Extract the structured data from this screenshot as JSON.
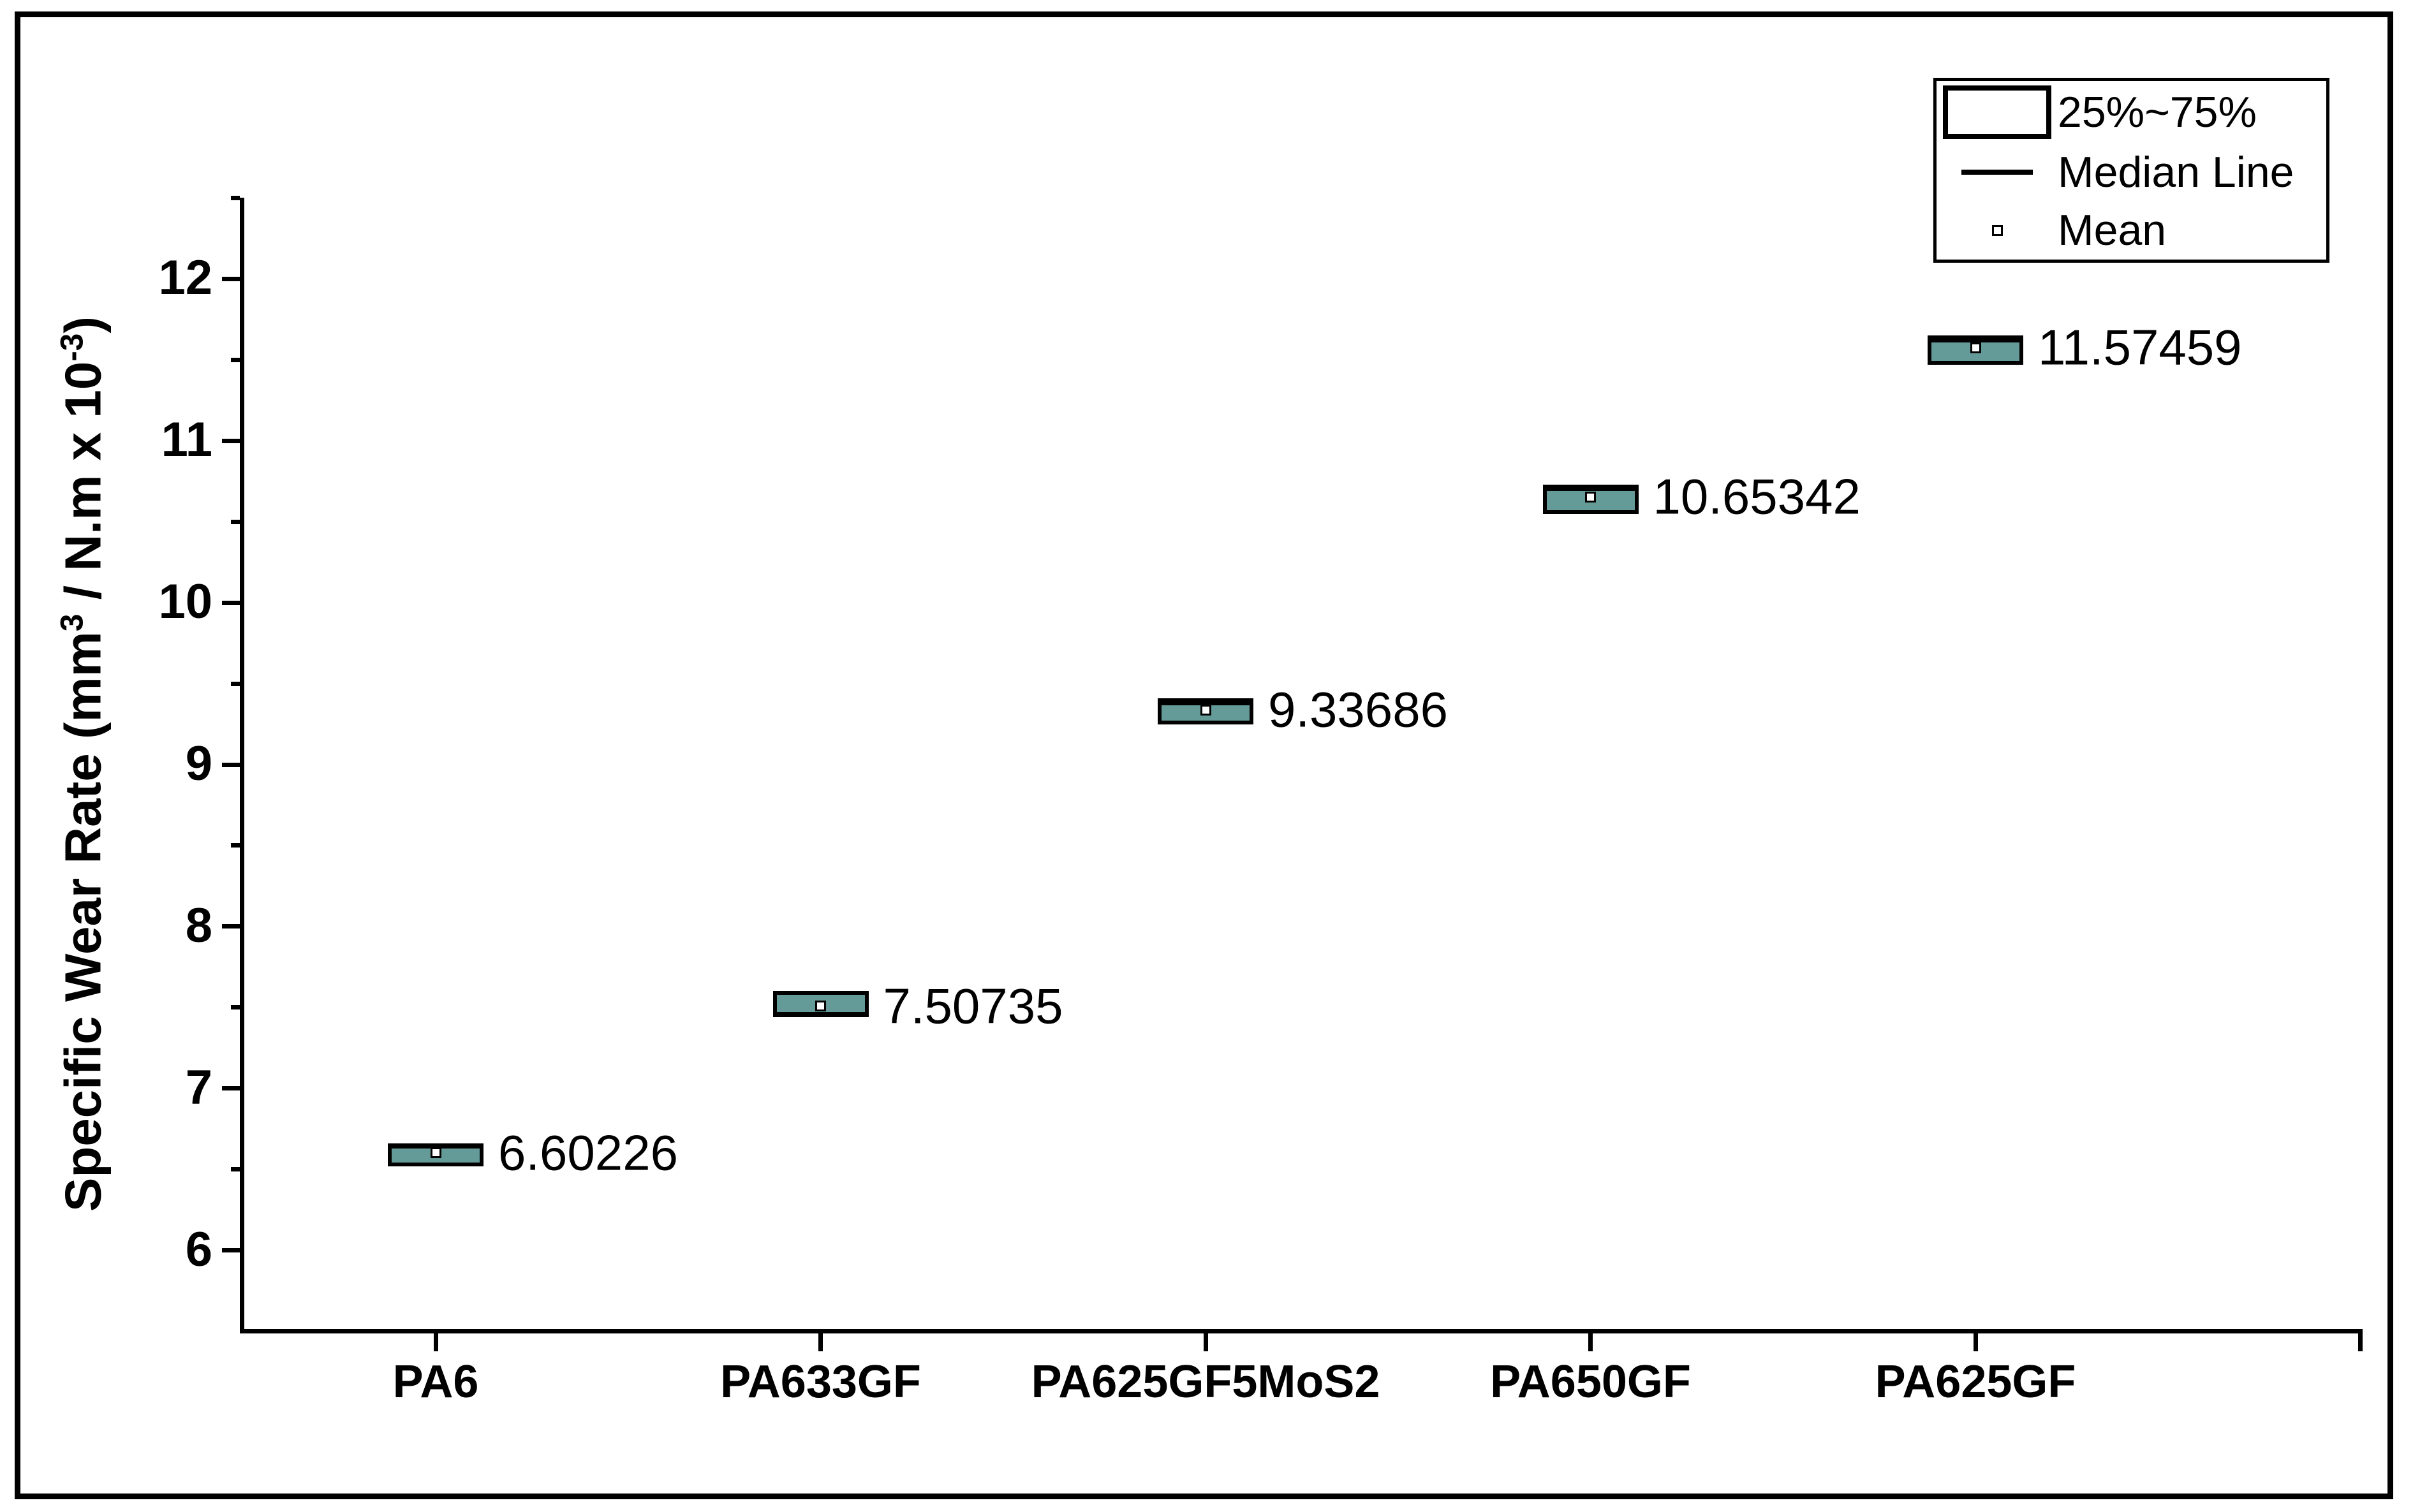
{
  "chart_data": {
    "type": "box",
    "title": "",
    "ylabel_parts": {
      "p1": "Specific Wear Rate (mm",
      "sup1": "3",
      "p2": " / N.m x 10",
      "sup2": "-3",
      "p3": ")"
    },
    "ylim": [
      5.5,
      12.5
    ],
    "yticks_major": [
      6,
      7,
      8,
      9,
      10,
      11,
      12
    ],
    "yticks_minor": [
      6.5,
      7.5,
      8.5,
      9.5,
      10.5,
      11.5,
      12.5
    ],
    "grid": "off",
    "legend_position": "top-right",
    "categories": [
      "PA6",
      "PA633GF",
      "PA625GF5MoS2",
      "PA650GF",
      "PA625GF"
    ],
    "series": [
      {
        "category": "PA6",
        "q1": 6.52,
        "median": 6.64,
        "q3": 6.66,
        "mean": 6.60226,
        "mean_label": "6.60226"
      },
      {
        "category": "PA633GF",
        "q1": 7.44,
        "median": 7.46,
        "q3": 7.6,
        "mean": 7.50735,
        "mean_label": "7.50735"
      },
      {
        "category": "PA625GF5MoS2",
        "q1": 9.25,
        "median": 9.38,
        "q3": 9.41,
        "mean": 9.33686,
        "mean_label": "9.33686"
      },
      {
        "category": "PA650GF",
        "q1": 10.55,
        "median": 10.7,
        "q3": 10.73,
        "mean": 10.65342,
        "mean_label": "10.65342"
      },
      {
        "category": "PA625GF",
        "q1": 11.47,
        "median": 11.62,
        "q3": 11.65,
        "mean": 11.57459,
        "mean_label": "11.57459"
      }
    ],
    "legend": {
      "items": [
        {
          "marker": "box-swatch",
          "label": "25%~75%"
        },
        {
          "marker": "median-line",
          "label": "Median Line"
        },
        {
          "marker": "mean-square",
          "label": "Mean"
        }
      ]
    },
    "colors": {
      "box_fill": "#649B99",
      "axis": "#000000",
      "text": "#000000",
      "background": "#ffffff"
    }
  }
}
